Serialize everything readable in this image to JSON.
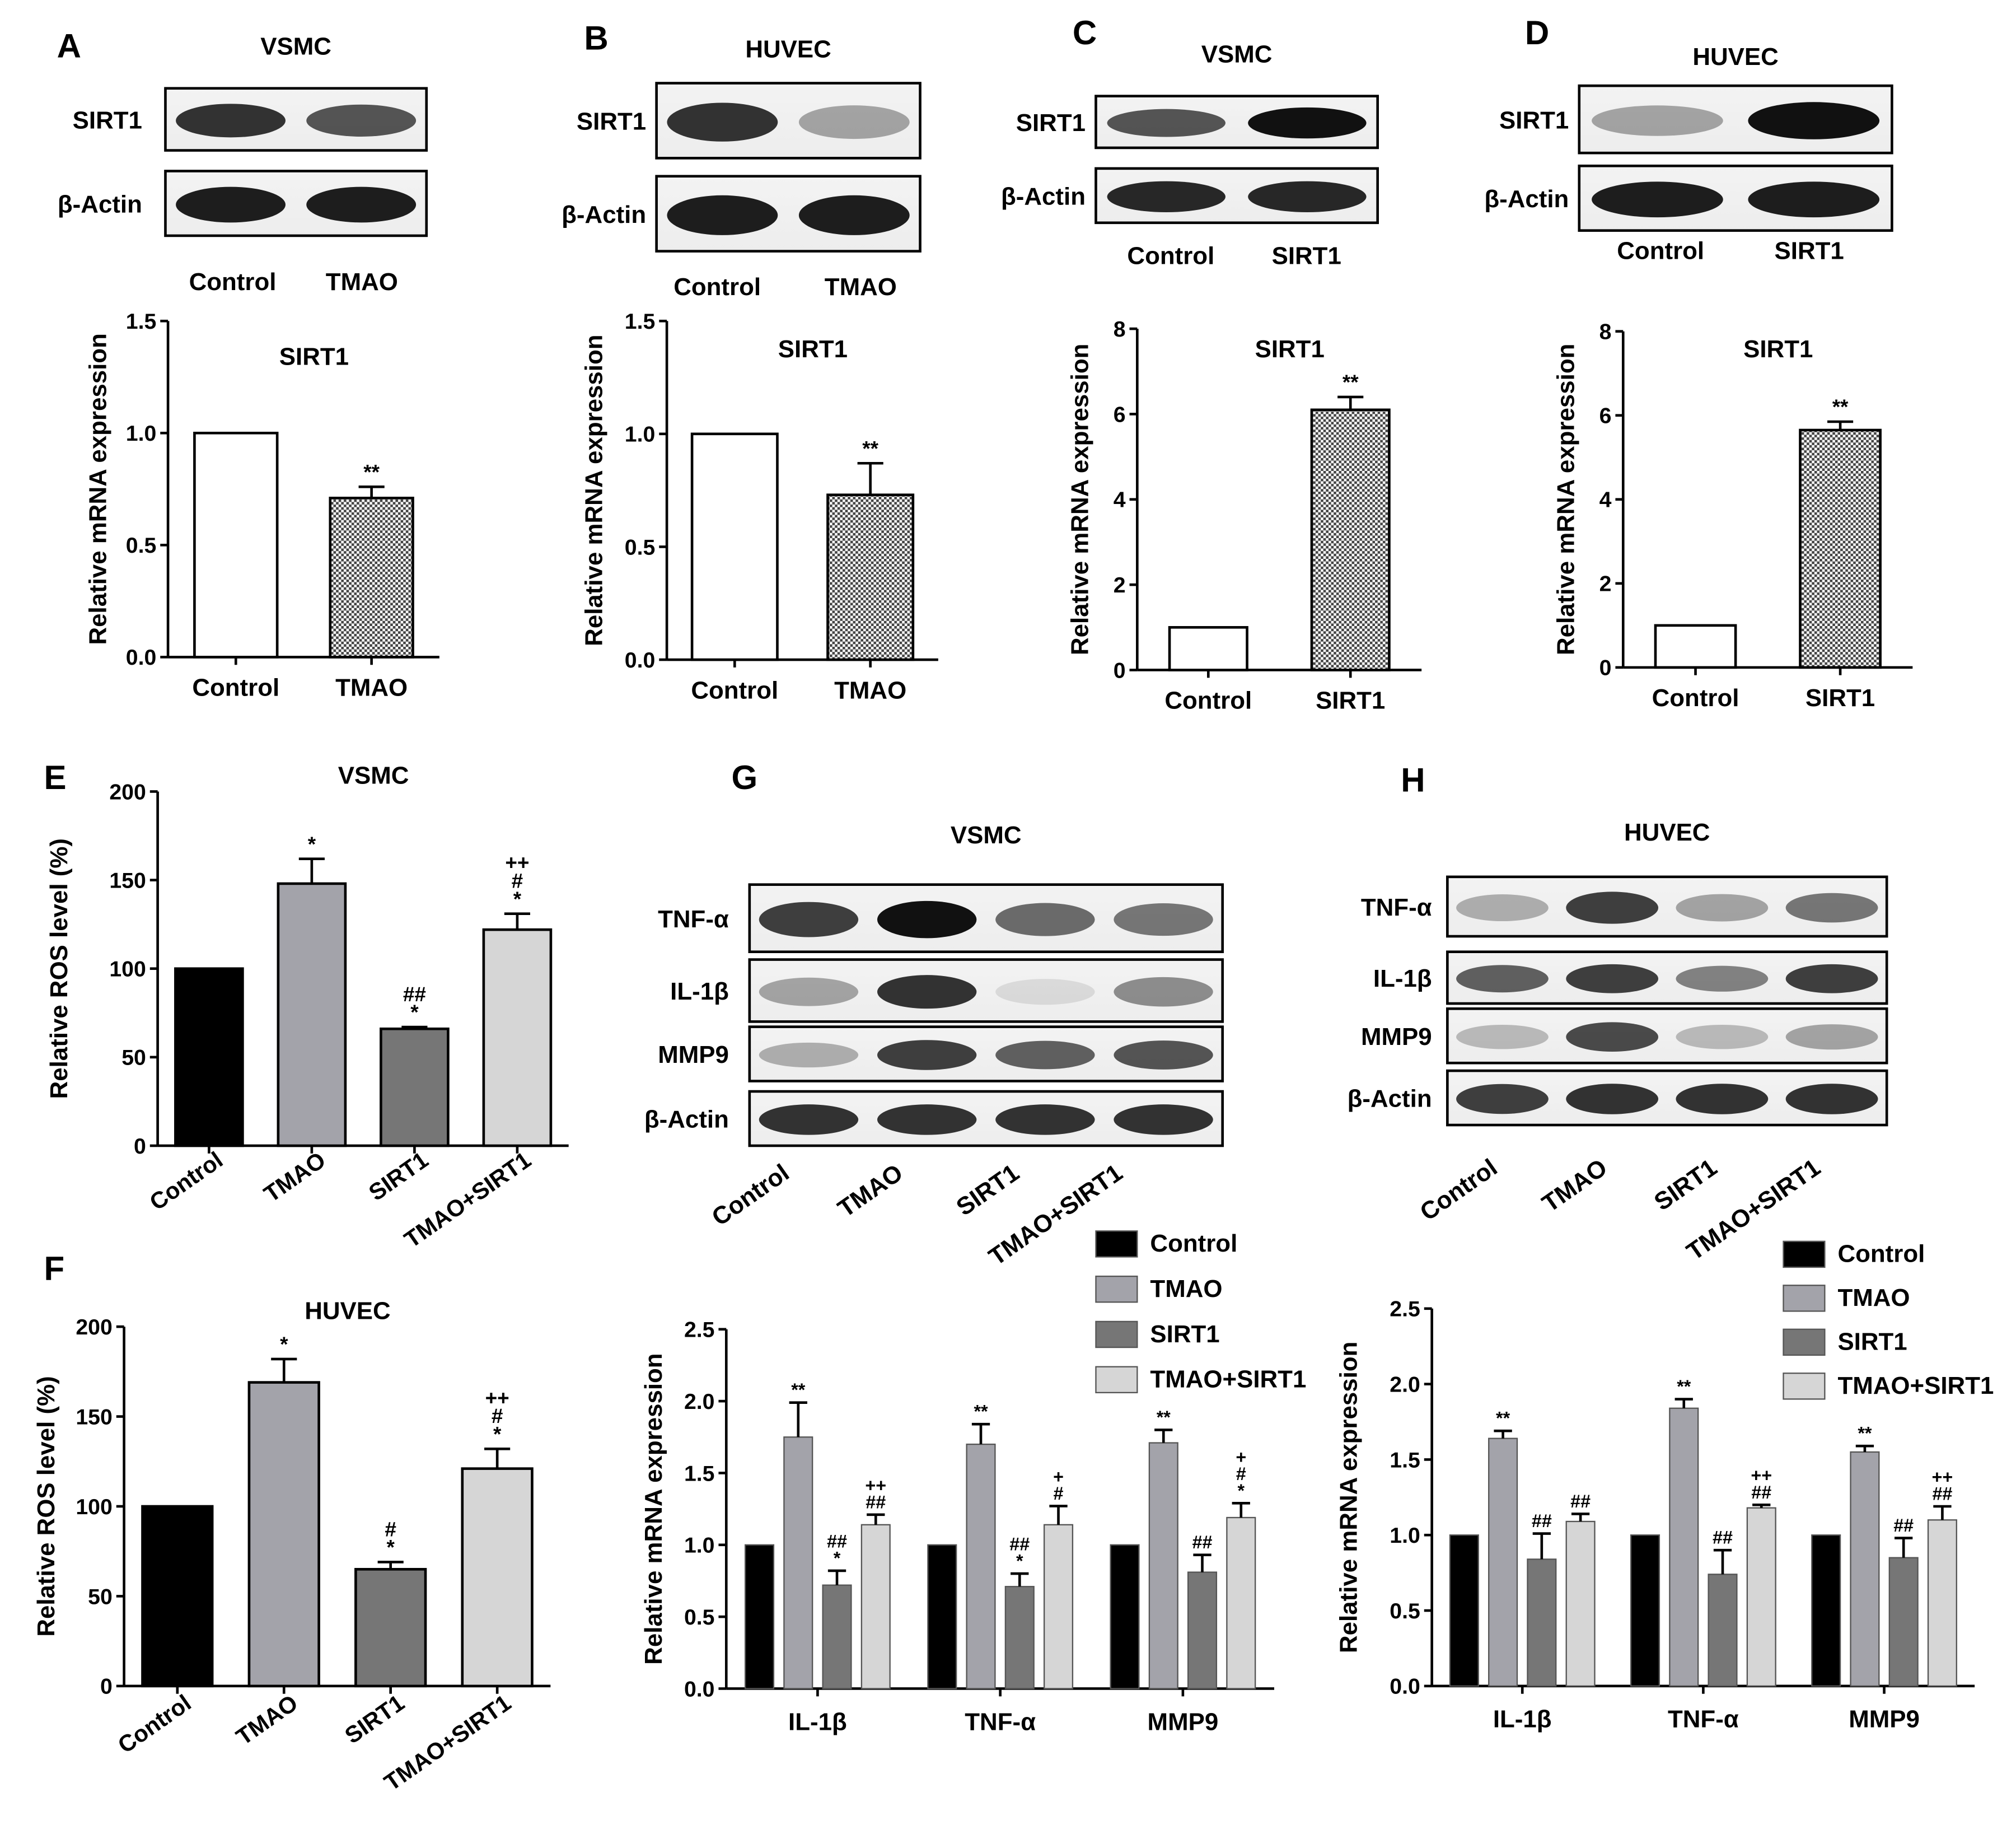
{
  "panels": {
    "A": {
      "letter": "A",
      "blot": {
        "cell": "VSMC",
        "rows": [
          "SIRT1",
          "β-Actin"
        ],
        "lanes": [
          "Control",
          "TMAO"
        ]
      },
      "chart_data": {
        "type": "bar",
        "title": "SIRT1",
        "ylabel": "Relative mRNA expression",
        "xlabel": "",
        "categories": [
          "Control",
          "TMAO"
        ],
        "values": [
          1.0,
          0.71
        ],
        "errors": [
          0,
          0.05
        ],
        "ylim": [
          0,
          1.5
        ],
        "yticks": [
          "0.0",
          "0.5",
          "1.0",
          "1.5"
        ],
        "annotations": [
          "",
          "**"
        ],
        "fills": [
          "white",
          "checker"
        ]
      }
    },
    "B": {
      "letter": "B",
      "blot": {
        "cell": "HUVEC",
        "rows": [
          "SIRT1",
          "β-Actin"
        ],
        "lanes": [
          "Control",
          "TMAO"
        ]
      },
      "chart_data": {
        "type": "bar",
        "title": "SIRT1",
        "ylabel": "Relative mRNA expression",
        "xlabel": "",
        "categories": [
          "Control",
          "TMAO"
        ],
        "values": [
          1.0,
          0.73
        ],
        "errors": [
          0,
          0.14
        ],
        "ylim": [
          0,
          1.5
        ],
        "yticks": [
          "0.0",
          "0.5",
          "1.0",
          "1.5"
        ],
        "annotations": [
          "",
          "**"
        ],
        "fills": [
          "white",
          "checker"
        ]
      }
    },
    "C": {
      "letter": "C",
      "blot": {
        "cell": "VSMC",
        "rows": [
          "SIRT1",
          "β-Actin"
        ],
        "lanes": [
          "Control",
          "SIRT1"
        ]
      },
      "chart_data": {
        "type": "bar",
        "title": "SIRT1",
        "ylabel": "Relative mRNA expression",
        "xlabel": "",
        "categories": [
          "Control",
          "SIRT1"
        ],
        "values": [
          1.0,
          6.1
        ],
        "errors": [
          0,
          0.3
        ],
        "ylim": [
          0,
          8
        ],
        "yticks": [
          "0",
          "2",
          "4",
          "6",
          "8"
        ],
        "annotations": [
          "",
          "**"
        ],
        "fills": [
          "white",
          "checker"
        ]
      }
    },
    "D": {
      "letter": "D",
      "blot": {
        "cell": "HUVEC",
        "rows": [
          "SIRT1",
          "β-Actin"
        ],
        "lanes": [
          "Control",
          "SIRT1"
        ]
      },
      "chart_data": {
        "type": "bar",
        "title": "SIRT1",
        "ylabel": "Relative mRNA expression",
        "xlabel": "",
        "categories": [
          "Control",
          "SIRT1"
        ],
        "values": [
          1.0,
          5.65
        ],
        "errors": [
          0,
          0.2
        ],
        "ylim": [
          0,
          8
        ],
        "yticks": [
          "0",
          "2",
          "4",
          "6",
          "8"
        ],
        "annotations": [
          "",
          "**"
        ],
        "fills": [
          "white",
          "checker"
        ]
      }
    },
    "E": {
      "letter": "E",
      "chart_data": {
        "type": "bar",
        "title": "VSMC",
        "ylabel": "Relative ROS level (%)",
        "xlabel": "",
        "categories": [
          "Control",
          "TMAO",
          "SIRT1",
          "TMAO+SIRT1"
        ],
        "values": [
          100,
          148,
          66,
          122
        ],
        "errors": [
          0,
          14,
          1,
          9
        ],
        "ylim": [
          0,
          200
        ],
        "yticks": [
          "0",
          "50",
          "100",
          "150",
          "200"
        ],
        "annotations": [
          [],
          [
            "*"
          ],
          [
            "##",
            "*"
          ],
          [
            "++",
            "#",
            "*"
          ]
        ],
        "colors": [
          "#000000",
          "#a3a3aa",
          "#767676",
          "#d6d6d6"
        ]
      }
    },
    "F": {
      "letter": "F",
      "chart_data": {
        "type": "bar",
        "title": "HUVEC",
        "ylabel": "Relative ROS level (%)",
        "xlabel": "",
        "categories": [
          "Control",
          "TMAO",
          "SIRT1",
          "TMAO+SIRT1"
        ],
        "values": [
          100,
          169,
          65,
          121
        ],
        "errors": [
          0,
          13,
          4,
          11
        ],
        "ylim": [
          0,
          200
        ],
        "yticks": [
          "0",
          "50",
          "100",
          "150",
          "200"
        ],
        "annotations": [
          [],
          [
            "*"
          ],
          [
            "#",
            "*"
          ],
          [
            "++",
            "#",
            "*"
          ]
        ],
        "colors": [
          "#000000",
          "#a3a3aa",
          "#767676",
          "#d6d6d6"
        ]
      }
    },
    "G": {
      "letter": "G",
      "blot": {
        "cell": "VSMC",
        "rows": [
          "TNF-α",
          "IL-1β",
          "MMP9",
          "β-Actin"
        ],
        "lanes": [
          "Control",
          "TMAO",
          "SIRT1",
          "TMAO+SIRT1"
        ]
      },
      "chart_data": {
        "type": "bar",
        "title": "",
        "ylabel": "Relative mRNA expression",
        "xlabel": "",
        "categories": [
          "IL-1β",
          "TNF-α",
          "MMP9"
        ],
        "ylim": [
          0,
          2.5
        ],
        "yticks": [
          "0.0",
          "0.5",
          "1.0",
          "1.5",
          "2.0",
          "2.5"
        ],
        "legend_position": "top-right",
        "series": [
          {
            "name": "Control",
            "color": "#000000",
            "values": [
              1.0,
              1.0,
              1.0
            ],
            "errors": [
              0,
              0,
              0
            ],
            "annotations": [
              [],
              [],
              []
            ]
          },
          {
            "name": "TMAO",
            "color": "#a3a3aa",
            "values": [
              1.75,
              1.7,
              1.71
            ],
            "errors": [
              0.24,
              0.14,
              0.09
            ],
            "annotations": [
              [
                "**"
              ],
              [
                "**"
              ],
              [
                "**"
              ]
            ]
          },
          {
            "name": "SIRT1",
            "color": "#767676",
            "values": [
              0.72,
              0.71,
              0.81
            ],
            "errors": [
              0.1,
              0.09,
              0.12
            ],
            "annotations": [
              [
                "##",
                "*"
              ],
              [
                "##",
                "*"
              ],
              [
                "##"
              ]
            ]
          },
          {
            "name": "TMAO+SIRT1",
            "color": "#d6d6d6",
            "values": [
              1.14,
              1.14,
              1.19
            ],
            "errors": [
              0.07,
              0.13,
              0.1
            ],
            "annotations": [
              [
                "++",
                "##"
              ],
              [
                "+",
                "#"
              ],
              [
                "+",
                "#",
                "*"
              ]
            ]
          }
        ]
      }
    },
    "H": {
      "letter": "H",
      "blot": {
        "cell": "HUVEC",
        "rows": [
          "TNF-α",
          "IL-1β",
          "MMP9",
          "β-Actin"
        ],
        "lanes": [
          "Control",
          "TMAO",
          "SIRT1",
          "TMAO+SIRT1"
        ]
      },
      "chart_data": {
        "type": "bar",
        "title": "",
        "ylabel": "Relative mRNA expression",
        "xlabel": "",
        "categories": [
          "IL-1β",
          "TNF-α",
          "MMP9"
        ],
        "ylim": [
          0,
          2.5
        ],
        "yticks": [
          "0.0",
          "0.5",
          "1.0",
          "1.5",
          "2.0",
          "2.5"
        ],
        "legend_position": "top-right",
        "series": [
          {
            "name": "Control",
            "color": "#000000",
            "values": [
              1.0,
              1.0,
              1.0
            ],
            "errors": [
              0,
              0,
              0
            ],
            "annotations": [
              [],
              [],
              []
            ]
          },
          {
            "name": "TMAO",
            "color": "#a3a3aa",
            "values": [
              1.64,
              1.84,
              1.55
            ],
            "errors": [
              0.05,
              0.06,
              0.04
            ],
            "annotations": [
              [
                "**"
              ],
              [
                "**"
              ],
              [
                "**"
              ]
            ]
          },
          {
            "name": "SIRT1",
            "color": "#767676",
            "values": [
              0.84,
              0.74,
              0.85
            ],
            "errors": [
              0.17,
              0.16,
              0.13
            ],
            "annotations": [
              [
                "##"
              ],
              [
                "##"
              ],
              [
                "##"
              ]
            ]
          },
          {
            "name": "TMAO+SIRT1",
            "color": "#d6d6d6",
            "values": [
              1.09,
              1.18,
              1.1
            ],
            "errors": [
              0.05,
              0.02,
              0.09
            ],
            "annotations": [
              [
                "##"
              ],
              [
                "++",
                "##"
              ],
              [
                "++",
                "##"
              ]
            ]
          }
        ]
      }
    }
  }
}
